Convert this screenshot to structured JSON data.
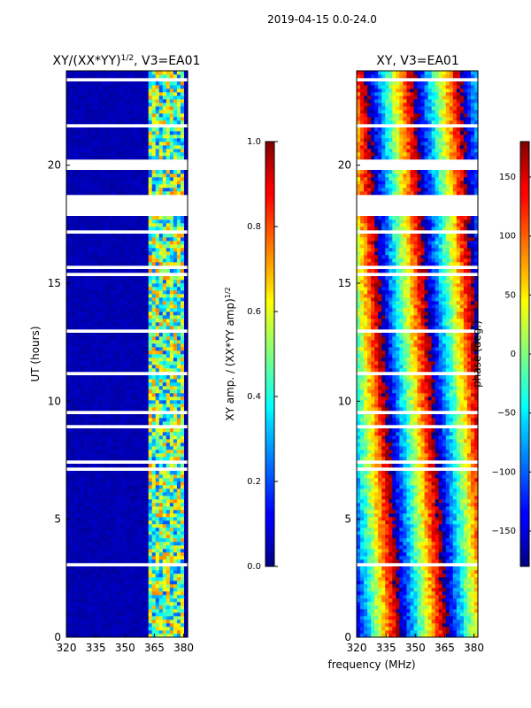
{
  "figure": {
    "suptitle": "2019-04-15 0.0-24.0",
    "shared_xlabel": "frequency (MHz)"
  },
  "chart_data": [
    {
      "type": "heatmap",
      "id": "amp",
      "title_main": "XY/(XX*YY)",
      "title_exp": "1/2",
      "title_tail": ", V3=EA01",
      "xlabel": "",
      "ylabel": "UT (hours)",
      "xlim": [
        320,
        382
      ],
      "ylim": [
        0,
        24
      ],
      "xticks": [
        320,
        335,
        350,
        365,
        380
      ],
      "yticks": [
        0,
        5,
        10,
        15,
        20
      ],
      "colorbar": {
        "label_main": "XY amp. / (XX*YY amp)",
        "label_exp": "1/2",
        "range": [
          0.0,
          1.0
        ],
        "ticks": [
          "0.0",
          "0.2",
          "0.4",
          "0.6",
          "0.8",
          "1.0"
        ],
        "tick_values": [
          0.0,
          0.2,
          0.4,
          0.6,
          0.8,
          1.0
        ]
      },
      "structure": {
        "background_value": 0.03,
        "active_band_mhz": [
          362,
          381
        ],
        "active_values_range": [
          0.2,
          0.75
        ],
        "flagged_gap_hours": [
          [
            17.9,
            18.7
          ],
          [
            19.8,
            20.2
          ],
          [
            21.6,
            21.8
          ]
        ]
      }
    },
    {
      "type": "heatmap",
      "id": "phase",
      "title_main": "XY, V3=EA01",
      "xlabel": "frequency (MHz)",
      "ylabel": "",
      "xlim": [
        320,
        382
      ],
      "ylim": [
        0,
        24
      ],
      "xticks": [
        320,
        335,
        350,
        365,
        380
      ],
      "yticks": [
        0,
        5,
        10,
        15,
        20
      ],
      "colorbar": {
        "label_main": "phase (deg.)",
        "range": [
          -180,
          180
        ],
        "ticks": [
          "−150",
          "−100",
          "−50",
          "0",
          "50",
          "100",
          "150"
        ],
        "tick_values": [
          -150,
          -100,
          -50,
          0,
          50,
          100,
          150
        ]
      },
      "structure": {
        "phase_wrap_mhz": 24,
        "flagged_gap_hours": [
          [
            17.9,
            18.7
          ],
          [
            19.8,
            20.2
          ],
          [
            21.6,
            21.8
          ]
        ]
      }
    }
  ]
}
